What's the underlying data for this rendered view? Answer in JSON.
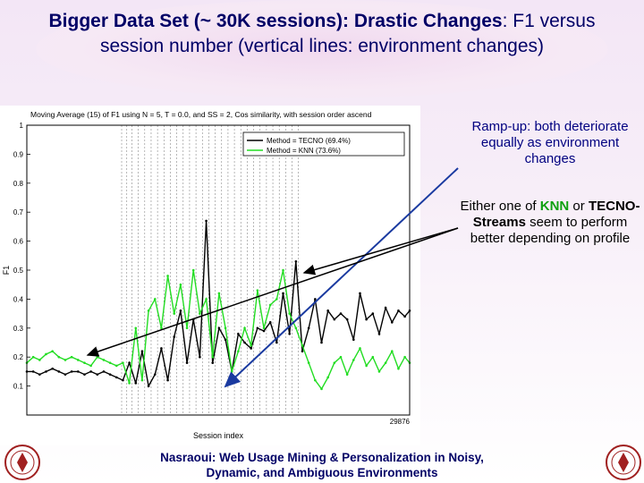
{
  "slide": {
    "title_bold": "Bigger Data Set (~ 30K sessions): Drastic Changes",
    "title_rest": ": F1 versus session number (vertical lines: environment changes)",
    "note1": "Ramp-up: both deteriorate equally as environment changes",
    "note2_pre": "Either one of ",
    "note2_knn": "KNN",
    "note2_mid": " or ",
    "note2_tecno": "TECNO-Streams",
    "note2_post": " seem to perform better depending on profile",
    "footer": "Nasraoui: Web Usage Mining & Personalization in Noisy, Dynamic, and Ambiguous Environments",
    "colors": {
      "title": "#000066",
      "knn_accent": "#10a010",
      "arrow": "#1a3aa0",
      "seal": "#a02020"
    },
    "seal_icon": "university-seal-icon"
  },
  "chart_data": {
    "type": "line",
    "title": "Moving Average (15) of F1 using N = 5, T = 0.0, and SS = 2, Cos similarity, with session order ascend",
    "xlabel": "Session index",
    "ylabel": "F1",
    "ylim": [
      0,
      1
    ],
    "y_ticks": [
      "0.1",
      "0.2",
      "0.3",
      "0.4",
      "0.5",
      "0.6",
      "0.7",
      "0.8",
      "0.9",
      "1"
    ],
    "x_tick_label": "29876",
    "x_range": [
      0,
      29876
    ],
    "grid": false,
    "legend_position": "top-right",
    "environment_change_lines": [
      7400,
      7800,
      8200,
      8700,
      9200,
      9700,
      10200,
      10700,
      11200,
      11700,
      12200,
      12700,
      13200,
      13700,
      14200,
      14700,
      15200,
      15700,
      16200,
      16700,
      17200,
      17700,
      18200,
      18700,
      19200,
      19700,
      20200,
      20700,
      21200
    ],
    "series": [
      {
        "name": "Method = TECNO (69.4%)",
        "color": "#000000",
        "x": [
          0,
          500,
          1000,
          1500,
          2000,
          2500,
          3000,
          3500,
          4000,
          4500,
          5000,
          5500,
          6000,
          6500,
          7000,
          7500,
          8000,
          8500,
          9000,
          9500,
          10000,
          10500,
          11000,
          11500,
          12000,
          12500,
          13000,
          13500,
          14000,
          14500,
          15000,
          15500,
          16000,
          16500,
          17000,
          17500,
          18000,
          18500,
          19000,
          19500,
          20000,
          20500,
          21000,
          21500,
          22000,
          22500,
          23000,
          23500,
          24000,
          24500,
          25000,
          25500,
          26000,
          26500,
          27000,
          27500,
          28000,
          28500,
          29000,
          29500,
          29876
        ],
        "y": [
          0.15,
          0.15,
          0.14,
          0.15,
          0.16,
          0.15,
          0.14,
          0.15,
          0.15,
          0.14,
          0.15,
          0.14,
          0.15,
          0.14,
          0.13,
          0.12,
          0.18,
          0.11,
          0.22,
          0.1,
          0.14,
          0.23,
          0.12,
          0.27,
          0.36,
          0.18,
          0.33,
          0.2,
          0.67,
          0.18,
          0.3,
          0.26,
          0.15,
          0.28,
          0.25,
          0.23,
          0.3,
          0.29,
          0.32,
          0.25,
          0.42,
          0.28,
          0.53,
          0.22,
          0.3,
          0.4,
          0.25,
          0.36,
          0.33,
          0.35,
          0.33,
          0.26,
          0.42,
          0.33,
          0.35,
          0.28,
          0.37,
          0.32,
          0.36,
          0.34,
          0.36
        ]
      },
      {
        "name": "Method = KNN    (73.6%)",
        "color": "#22dd22",
        "x": [
          0,
          500,
          1000,
          1500,
          2000,
          2500,
          3000,
          3500,
          4000,
          4500,
          5000,
          5500,
          6000,
          6500,
          7000,
          7500,
          8000,
          8500,
          9000,
          9500,
          10000,
          10500,
          11000,
          11500,
          12000,
          12500,
          13000,
          13500,
          14000,
          14500,
          15000,
          15500,
          16000,
          16500,
          17000,
          17500,
          18000,
          18500,
          19000,
          19500,
          20000,
          20500,
          21000,
          21500,
          22000,
          22500,
          23000,
          23500,
          24000,
          24500,
          25000,
          25500,
          26000,
          26500,
          27000,
          27500,
          28000,
          28500,
          29000,
          29500,
          29876
        ],
        "y": [
          0.18,
          0.2,
          0.19,
          0.21,
          0.22,
          0.2,
          0.19,
          0.2,
          0.19,
          0.18,
          0.17,
          0.2,
          0.19,
          0.18,
          0.17,
          0.18,
          0.11,
          0.3,
          0.12,
          0.36,
          0.4,
          0.3,
          0.48,
          0.35,
          0.45,
          0.3,
          0.5,
          0.35,
          0.4,
          0.2,
          0.42,
          0.3,
          0.15,
          0.22,
          0.3,
          0.24,
          0.43,
          0.3,
          0.38,
          0.4,
          0.5,
          0.35,
          0.3,
          0.24,
          0.18,
          0.12,
          0.09,
          0.13,
          0.18,
          0.2,
          0.14,
          0.19,
          0.23,
          0.17,
          0.2,
          0.15,
          0.18,
          0.22,
          0.16,
          0.2,
          0.18
        ]
      }
    ]
  }
}
